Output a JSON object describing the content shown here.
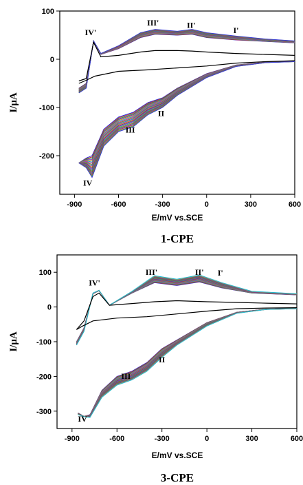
{
  "chart_data": [
    {
      "type": "line",
      "title": "1-CPE",
      "xlabel": "E/mV vs.SCE",
      "ylabel": "I/μA",
      "xlim": [
        -1000,
        600
      ],
      "ylim": [
        -280,
        100
      ],
      "xticks": [
        -900,
        -600,
        -300,
        0,
        300,
        600
      ],
      "yticks": [
        100,
        0,
        -100,
        -200
      ],
      "grid": false,
      "n_cycles": 18,
      "peak_labels": [
        {
          "text": "IV'",
          "x": -790,
          "y": 50
        },
        {
          "text": "III'",
          "x": -365,
          "y": 70
        },
        {
          "text": "II'",
          "x": -105,
          "y": 65
        },
        {
          "text": "I'",
          "x": 200,
          "y": 54
        },
        {
          "text": "IV",
          "x": -810,
          "y": -262
        },
        {
          "text": "III",
          "x": -520,
          "y": -152
        },
        {
          "text": "II",
          "x": -310,
          "y": -118
        }
      ],
      "series": [
        {
          "values": [
            [
              -870,
              -45
            ],
            [
              -820,
              -40
            ],
            [
              -770,
              35
            ],
            [
              -720,
              5
            ],
            [
              -600,
              8
            ],
            [
              -450,
              15
            ],
            [
              -350,
              18
            ],
            [
              -200,
              18
            ],
            [
              -100,
              17
            ],
            [
              0,
              15
            ],
            [
              200,
              12
            ],
            [
              400,
              10
            ],
            [
              600,
              8
            ]
          ]
        },
        {
          "values": [
            [
              600,
              -3
            ],
            [
              400,
              -5
            ],
            [
              200,
              -8
            ],
            [
              0,
              -14
            ],
            [
              -200,
              -18
            ],
            [
              -400,
              -22
            ],
            [
              -600,
              -25
            ],
            [
              -760,
              -35
            ],
            [
              -830,
              -45
            ],
            [
              -870,
              -50
            ]
          ]
        },
        {
          "values": [
            [
              -870,
              -60
            ],
            [
              -820,
              -50
            ],
            [
              -770,
              37
            ],
            [
              -720,
              10
            ],
            [
              -600,
              22
            ],
            [
              -450,
              45
            ],
            [
              -350,
              52
            ],
            [
              -200,
              50
            ],
            [
              -100,
              52
            ],
            [
              0,
              45
            ],
            [
              200,
              40
            ],
            [
              400,
              37
            ],
            [
              600,
              34
            ]
          ]
        },
        {
          "values": [
            [
              600,
              -4
            ],
            [
              400,
              -6
            ],
            [
              200,
              -12
            ],
            [
              0,
              -30
            ],
            [
              -200,
              -60
            ],
            [
              -300,
              -80
            ],
            [
              -400,
              -90
            ],
            [
              -500,
              -110
            ],
            [
              -600,
              -120
            ],
            [
              -700,
              -145
            ],
            [
              -780,
              -200
            ],
            [
              -820,
              -205
            ],
            [
              -870,
              -215
            ]
          ]
        },
        {
          "values": [
            [
              -870,
              -70
            ],
            [
              -820,
              -60
            ],
            [
              -770,
              38
            ],
            [
              -720,
              12
            ],
            [
              -600,
              28
            ],
            [
              -450,
              55
            ],
            [
              -350,
              62
            ],
            [
              -200,
              58
            ],
            [
              -100,
              62
            ],
            [
              0,
              55
            ],
            [
              200,
              48
            ],
            [
              400,
              42
            ],
            [
              600,
              38
            ]
          ]
        },
        {
          "values": [
            [
              600,
              -5
            ],
            [
              400,
              -7
            ],
            [
              200,
              -15
            ],
            [
              0,
              -38
            ],
            [
              -200,
              -75
            ],
            [
              -300,
              -100
            ],
            [
              -400,
              -115
            ],
            [
              -500,
              -140
            ],
            [
              -600,
              -150
            ],
            [
              -700,
              -180
            ],
            [
              -780,
              -245
            ],
            [
              -820,
              -225
            ],
            [
              -870,
              -215
            ]
          ]
        }
      ]
    },
    {
      "type": "line",
      "title": "3-CPE",
      "xlabel": "E/mV vs.SCE",
      "ylabel": "I/μA",
      "xlim": [
        -1000,
        600
      ],
      "ylim": [
        -350,
        150
      ],
      "xticks": [
        -900,
        -600,
        -300,
        0,
        300,
        600
      ],
      "yticks": [
        100,
        0,
        -100,
        -200,
        -300
      ],
      "grid": false,
      "n_cycles": 20,
      "peak_labels": [
        {
          "text": "IV'",
          "x": -750,
          "y": 62
        },
        {
          "text": "III'",
          "x": -370,
          "y": 92
        },
        {
          "text": "II'",
          "x": -50,
          "y": 92
        },
        {
          "text": "I'",
          "x": 90,
          "y": 90
        },
        {
          "text": "IV",
          "x": -830,
          "y": -330
        },
        {
          "text": "III",
          "x": -540,
          "y": -207
        },
        {
          "text": "II",
          "x": -300,
          "y": -160
        }
      ],
      "series": [
        {
          "values": [
            [
              -870,
              -65
            ],
            [
              -820,
              -40
            ],
            [
              -760,
              30
            ],
            [
              -720,
              40
            ],
            [
              -650,
              5
            ],
            [
              -500,
              10
            ],
            [
              -350,
              15
            ],
            [
              -200,
              18
            ],
            [
              0,
              15
            ],
            [
              200,
              13
            ],
            [
              400,
              11
            ],
            [
              600,
              9
            ]
          ]
        },
        {
          "values": [
            [
              600,
              -2
            ],
            [
              400,
              -3
            ],
            [
              200,
              -5
            ],
            [
              0,
              -12
            ],
            [
              -200,
              -20
            ],
            [
              -400,
              -28
            ],
            [
              -600,
              -32
            ],
            [
              -760,
              -40
            ],
            [
              -830,
              -55
            ],
            [
              -870,
              -65
            ]
          ]
        },
        {
          "values": [
            [
              -870,
              -100
            ],
            [
              -820,
              -60
            ],
            [
              -760,
              38
            ],
            [
              -720,
              47
            ],
            [
              -650,
              5
            ],
            [
              -500,
              40
            ],
            [
              -350,
              70
            ],
            [
              -200,
              62
            ],
            [
              -50,
              72
            ],
            [
              100,
              55
            ],
            [
              300,
              40
            ],
            [
              600,
              35
            ]
          ]
        },
        {
          "values": [
            [
              600,
              -4
            ],
            [
              400,
              -6
            ],
            [
              200,
              -15
            ],
            [
              0,
              -45
            ],
            [
              -200,
              -95
            ],
            [
              -300,
              -120
            ],
            [
              -400,
              -160
            ],
            [
              -500,
              -185
            ],
            [
              -600,
              -200
            ],
            [
              -700,
              -240
            ],
            [
              -780,
              -310
            ],
            [
              -820,
              -315
            ],
            [
              -860,
              -305
            ]
          ]
        },
        {
          "values": [
            [
              -870,
              -110
            ],
            [
              -820,
              -70
            ],
            [
              -760,
              40
            ],
            [
              -720,
              48
            ],
            [
              -650,
              5
            ],
            [
              -500,
              45
            ],
            [
              -350,
              90
            ],
            [
              -200,
              80
            ],
            [
              -50,
              92
            ],
            [
              100,
              70
            ],
            [
              300,
              45
            ],
            [
              600,
              38
            ]
          ]
        },
        {
          "values": [
            [
              600,
              -5
            ],
            [
              400,
              -7
            ],
            [
              200,
              -18
            ],
            [
              0,
              -55
            ],
            [
              -200,
              -110
            ],
            [
              -300,
              -145
            ],
            [
              -400,
              -185
            ],
            [
              -500,
              -210
            ],
            [
              -600,
              -225
            ],
            [
              -700,
              -260
            ],
            [
              -780,
              -318
            ],
            [
              -820,
              -316
            ],
            [
              -860,
              -310
            ]
          ]
        }
      ]
    }
  ],
  "colors": [
    "#000000",
    "#1f2fd6",
    "#d21f3c",
    "#1fa83a",
    "#7a1fc4",
    "#c98a12",
    "#15a9b8",
    "#d61fa9",
    "#6b8e23",
    "#2a6fdb",
    "#e05a1f",
    "#555555",
    "#8b1fd6",
    "#17c46a",
    "#b8351a",
    "#1f7fa8",
    "#c41f6b",
    "#5aa81f",
    "#3b3bd6",
    "#d6a81f",
    "#1fb8d6",
    "#a81fd6"
  ]
}
